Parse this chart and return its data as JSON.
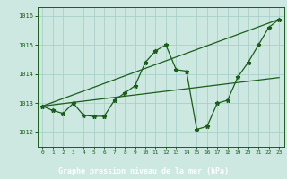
{
  "title": "Graphe pression niveau de la mer (hPa)",
  "bg_color": "#cce8e0",
  "label_bg_color": "#2d6e2d",
  "grid_color": "#aacfca",
  "line_color": "#1a5e1a",
  "xlim": [
    -0.5,
    23.5
  ],
  "ylim": [
    1011.5,
    1016.3
  ],
  "yticks": [
    1012,
    1013,
    1014,
    1015,
    1016
  ],
  "xticks": [
    0,
    1,
    2,
    3,
    4,
    5,
    6,
    7,
    8,
    9,
    10,
    11,
    12,
    13,
    14,
    15,
    16,
    17,
    18,
    19,
    20,
    21,
    22,
    23
  ],
  "zigzag_x": [
    0,
    1,
    2,
    3,
    4,
    5,
    6,
    7,
    8,
    9,
    10,
    11,
    12,
    13,
    14,
    15,
    16,
    17,
    18,
    19,
    20,
    21,
    22,
    23
  ],
  "zigzag_y": [
    1012.9,
    1012.75,
    1012.65,
    1013.0,
    1012.58,
    1012.55,
    1012.55,
    1013.1,
    1013.35,
    1013.6,
    1014.4,
    1014.8,
    1015.0,
    1014.15,
    1014.1,
    1012.1,
    1012.2,
    1013.0,
    1013.1,
    1013.9,
    1014.4,
    1015.0,
    1015.6,
    1015.88
  ],
  "line1_x": [
    0,
    23
  ],
  "line1_y": [
    1012.9,
    1015.88
  ],
  "line2_x": [
    0,
    23
  ],
  "line2_y": [
    1012.9,
    1013.88
  ]
}
